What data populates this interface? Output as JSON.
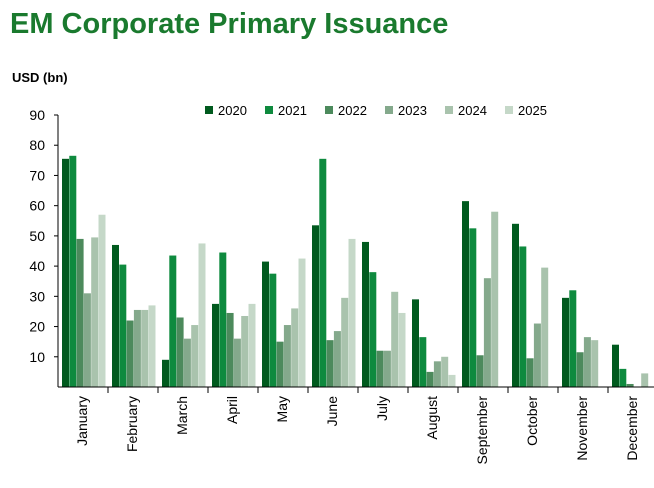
{
  "chart_data": {
    "type": "bar",
    "title": "EM Corporate Primary Issuance",
    "ylabel": "USD (bn)",
    "xlabel": "",
    "ylim": [
      0,
      90
    ],
    "yticks": [
      10,
      20,
      30,
      40,
      50,
      60,
      70,
      80,
      90
    ],
    "grid": false,
    "legend_position": "top",
    "categories": [
      "January",
      "February",
      "March",
      "April",
      "May",
      "June",
      "July",
      "August",
      "September",
      "October",
      "November",
      "December"
    ],
    "series": [
      {
        "name": "2020",
        "color": "#005a1e",
        "values": [
          75.5,
          47,
          9,
          27.5,
          41.5,
          53.5,
          48,
          29,
          61.5,
          54,
          29.5,
          14
        ]
      },
      {
        "name": "2021",
        "color": "#0e8a3e",
        "values": [
          76.5,
          40.5,
          43.5,
          44.5,
          37.5,
          75.5,
          38,
          16.5,
          52.5,
          46.5,
          32,
          6
        ]
      },
      {
        "name": "2022",
        "color": "#4c8a5c",
        "values": [
          49,
          22,
          23,
          24.5,
          15,
          15.5,
          12,
          5,
          10.5,
          9.5,
          11.5,
          1
        ]
      },
      {
        "name": "2023",
        "color": "#84a98c",
        "values": [
          31,
          25.5,
          16,
          16,
          20.5,
          18.5,
          12,
          8.5,
          36,
          21,
          16.5,
          0
        ]
      },
      {
        "name": "2024",
        "color": "#a9c3ad",
        "values": [
          49.5,
          25.5,
          20.5,
          23.5,
          26,
          29.5,
          31.5,
          10,
          58,
          39.5,
          15.5,
          4.5
        ]
      },
      {
        "name": "2025",
        "color": "#c5d8c8",
        "values": [
          57,
          27,
          47.5,
          27.5,
          42.5,
          49,
          24.5,
          4,
          0,
          0,
          0,
          0
        ]
      }
    ]
  }
}
